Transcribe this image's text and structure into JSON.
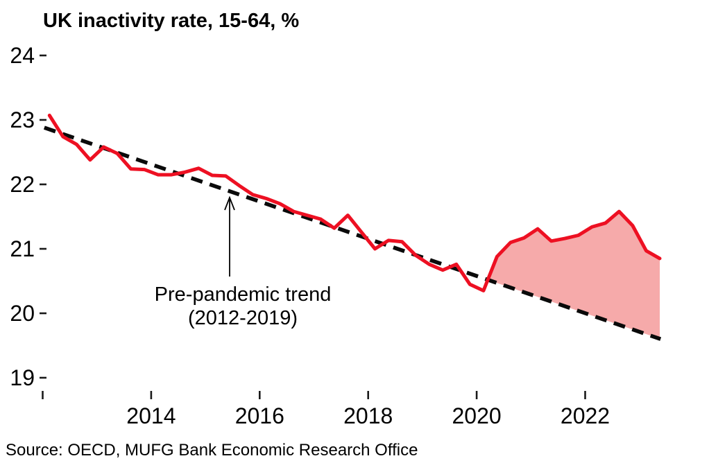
{
  "chart": {
    "title": "UK inactivity rate, 15-64, %",
    "annotation": {
      "line1": "Pre-pandemic trend",
      "line2": "(2012-2019)"
    },
    "source": "Source: OECD, MUFG Bank Economic Research Office"
  },
  "chart_data": {
    "type": "line",
    "title": "UK inactivity rate, 15-64, %",
    "xlabel": "",
    "ylabel": "%",
    "grid": false,
    "legend": "none",
    "xlim": [
      2011.9,
      2023.6
    ],
    "ylim": [
      18.85,
      24.15
    ],
    "y_ticks": [
      24,
      23,
      22,
      21,
      20,
      19
    ],
    "x_ticks_labeled": [
      2014,
      2016,
      2018,
      2020,
      2022
    ],
    "x_ticks_unlabeled": [
      2012
    ],
    "frequency": "quarterly",
    "series": [
      {
        "name": "UK inactivity rate, 15-64",
        "style": "solid",
        "color": "#ED1022",
        "x": [
          2012.125,
          2012.375,
          2012.625,
          2012.875,
          2013.125,
          2013.375,
          2013.625,
          2013.875,
          2014.125,
          2014.375,
          2014.625,
          2014.875,
          2015.125,
          2015.375,
          2015.625,
          2015.875,
          2016.125,
          2016.375,
          2016.625,
          2016.875,
          2017.125,
          2017.375,
          2017.625,
          2017.875,
          2018.125,
          2018.375,
          2018.625,
          2018.875,
          2019.125,
          2019.375,
          2019.625,
          2019.875,
          2020.125,
          2020.375,
          2020.625,
          2020.875,
          2021.125,
          2021.375,
          2021.625,
          2021.875,
          2022.125,
          2022.375,
          2022.625,
          2022.875,
          2023.125,
          2023.375
        ],
        "values": [
          23.07,
          22.74,
          22.62,
          22.38,
          22.58,
          22.48,
          22.24,
          22.23,
          22.15,
          22.15,
          22.19,
          22.25,
          22.14,
          22.13,
          21.98,
          21.84,
          21.78,
          21.7,
          21.58,
          21.52,
          21.46,
          21.32,
          21.52,
          21.26,
          21.0,
          21.13,
          21.11,
          20.9,
          20.76,
          20.67,
          20.76,
          20.45,
          20.35,
          20.88,
          21.1,
          21.17,
          21.31,
          21.12,
          21.16,
          21.21,
          21.34,
          21.4,
          21.58,
          21.36,
          20.97,
          20.85
        ]
      },
      {
        "name": "Pre-pandemic trend (2012-2019)",
        "style": "dashed",
        "color": "#0a0a0a",
        "x": [
          2012.03,
          2023.39
        ],
        "values": [
          22.88,
          19.6
        ]
      }
    ],
    "gap_fill": {
      "description": "shaded area between actual rate and pre-pandemic trend after 2020 crossing",
      "color": "#F6AAAA"
    },
    "annotation": {
      "text": [
        "Pre-pandemic trend",
        "(2012-2019)"
      ],
      "arrow_points_to": {
        "x": 2015.45,
        "value": 21.9
      }
    }
  }
}
